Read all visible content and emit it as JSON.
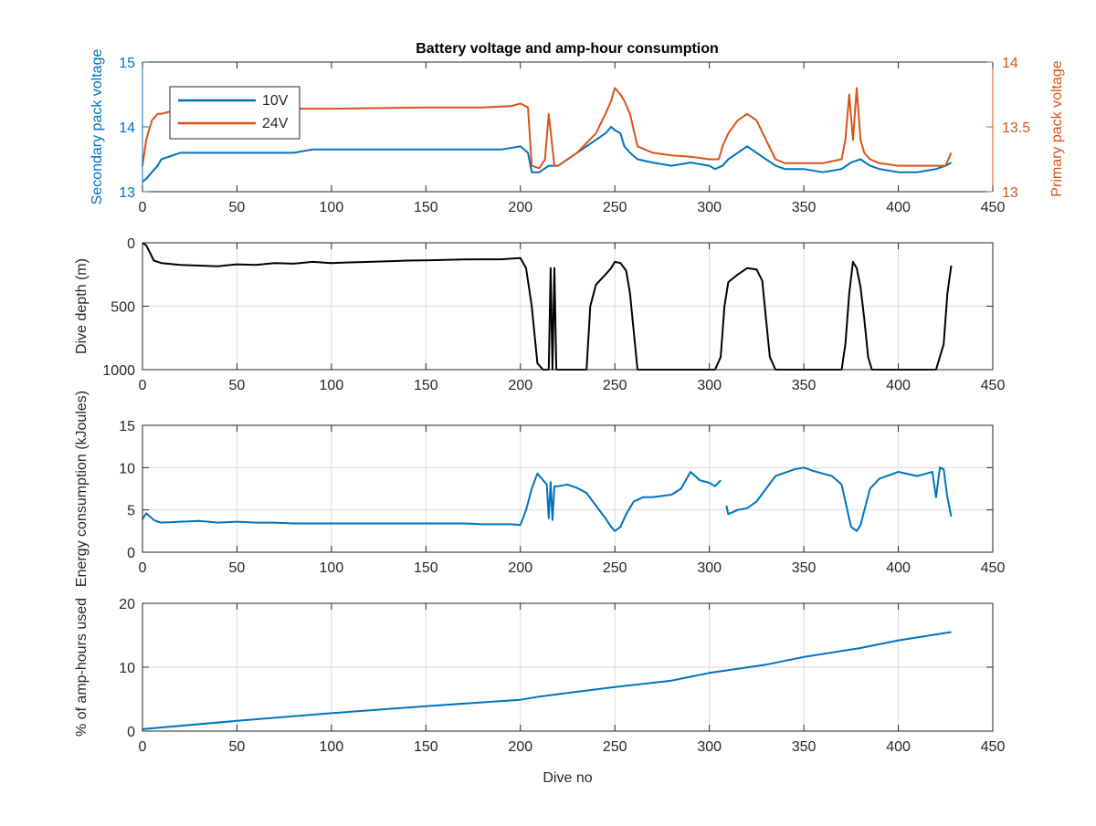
{
  "chart_data": [
    {
      "type": "line",
      "title": "Battery voltage and amp-hour consumption",
      "ylabel": "Secondary pack voltage",
      "ylabel_right": "Primary pack voltage",
      "xlim": [
        0,
        450
      ],
      "ylim": [
        13,
        15
      ],
      "ylim_right": [
        13,
        14
      ],
      "xticks": [
        0,
        50,
        100,
        150,
        200,
        250,
        300,
        350,
        400,
        450
      ],
      "yticks": [
        13,
        14,
        15
      ],
      "yticks_right": [
        13,
        13.5,
        14
      ],
      "grid": false,
      "legend": "top-left",
      "series": [
        {
          "name": "10V",
          "axis": "left",
          "color": "#0072BD",
          "x": [
            0,
            2,
            5,
            8,
            10,
            20,
            30,
            40,
            50,
            60,
            70,
            80,
            90,
            100,
            110,
            120,
            130,
            140,
            150,
            160,
            170,
            180,
            190,
            200,
            204,
            206,
            210,
            215,
            220,
            225,
            230,
            235,
            240,
            245,
            248,
            250,
            253,
            255,
            258,
            262,
            270,
            280,
            290,
            300,
            303,
            307,
            310,
            315,
            320,
            325,
            330,
            335,
            340,
            350,
            360,
            370,
            375,
            380,
            385,
            390,
            400,
            410,
            420,
            425,
            428
          ],
          "y": [
            13.15,
            13.2,
            13.3,
            13.4,
            13.5,
            13.6,
            13.6,
            13.6,
            13.6,
            13.6,
            13.6,
            13.6,
            13.65,
            13.65,
            13.65,
            13.65,
            13.65,
            13.65,
            13.65,
            13.65,
            13.65,
            13.65,
            13.65,
            13.7,
            13.6,
            13.3,
            13.3,
            13.4,
            13.4,
            13.5,
            13.6,
            13.7,
            13.8,
            13.9,
            14.0,
            13.95,
            13.9,
            13.7,
            13.6,
            13.5,
            13.45,
            13.4,
            13.45,
            13.4,
            13.35,
            13.4,
            13.5,
            13.6,
            13.7,
            13.6,
            13.5,
            13.4,
            13.35,
            13.35,
            13.3,
            13.35,
            13.45,
            13.5,
            13.4,
            13.35,
            13.3,
            13.3,
            13.35,
            13.4,
            13.45
          ]
        },
        {
          "name": "24V",
          "axis": "right",
          "color": "#D95319",
          "x": [
            0,
            2,
            5,
            8,
            10,
            15,
            20,
            50,
            80,
            100,
            150,
            180,
            195,
            200,
            204,
            206,
            210,
            213,
            215,
            218,
            220,
            230,
            240,
            245,
            248,
            250,
            253,
            255,
            258,
            262,
            270,
            280,
            290,
            300,
            305,
            307,
            310,
            315,
            320,
            325,
            330,
            335,
            340,
            350,
            360,
            370,
            372,
            374,
            376,
            378,
            380,
            382,
            385,
            390,
            400,
            410,
            420,
            425,
            428
          ],
          "y": [
            13.2,
            13.4,
            13.55,
            13.6,
            13.6,
            13.62,
            13.63,
            13.63,
            13.64,
            13.64,
            13.65,
            13.65,
            13.66,
            13.68,
            13.65,
            13.2,
            13.18,
            13.25,
            13.6,
            13.2,
            13.2,
            13.3,
            13.45,
            13.6,
            13.7,
            13.8,
            13.75,
            13.7,
            13.6,
            13.35,
            13.3,
            13.28,
            13.27,
            13.25,
            13.25,
            13.35,
            13.45,
            13.55,
            13.6,
            13.55,
            13.4,
            13.25,
            13.22,
            13.22,
            13.22,
            13.25,
            13.4,
            13.75,
            13.4,
            13.8,
            13.4,
            13.3,
            13.25,
            13.22,
            13.2,
            13.2,
            13.2,
            13.2,
            13.3
          ]
        }
      ]
    },
    {
      "type": "line",
      "ylabel": "Dive depth (m)",
      "xlim": [
        0,
        450
      ],
      "ylim": [
        0,
        1000
      ],
      "y_reversed": true,
      "xticks": [
        0,
        50,
        100,
        150,
        200,
        250,
        300,
        350,
        400,
        450
      ],
      "yticks": [
        0,
        500,
        1000
      ],
      "grid": true,
      "series": [
        {
          "color": "#000000",
          "x": [
            0,
            2,
            4,
            6,
            10,
            20,
            30,
            40,
            50,
            60,
            70,
            80,
            90,
            100,
            110,
            120,
            130,
            140,
            150,
            160,
            170,
            180,
            190,
            195,
            200,
            203,
            206,
            209,
            212,
            215,
            216,
            217,
            218,
            219,
            220,
            235,
            237,
            240,
            245,
            248,
            250,
            253,
            256,
            258,
            260,
            262,
            270,
            280,
            290,
            300,
            303,
            306,
            308,
            310,
            315,
            320,
            325,
            328,
            330,
            332,
            335,
            340,
            350,
            360,
            370,
            372,
            374,
            376,
            378,
            380,
            382,
            384,
            386,
            390,
            400,
            410,
            420,
            424,
            426,
            428
          ],
          "y": [
            0,
            20,
            80,
            140,
            160,
            175,
            180,
            185,
            170,
            175,
            160,
            165,
            150,
            160,
            155,
            150,
            145,
            140,
            138,
            135,
            132,
            130,
            130,
            125,
            120,
            200,
            500,
            950,
            1000,
            1000,
            200,
            1000,
            200,
            1000,
            1000,
            1000,
            500,
            330,
            250,
            200,
            150,
            160,
            220,
            400,
            700,
            1000,
            1000,
            1000,
            1000,
            1000,
            1000,
            900,
            500,
            310,
            250,
            200,
            210,
            300,
            600,
            900,
            1000,
            1000,
            1000,
            1000,
            1000,
            800,
            400,
            150,
            200,
            350,
            600,
            900,
            1000,
            1000,
            1000,
            1000,
            1000,
            800,
            400,
            180
          ]
        }
      ]
    },
    {
      "type": "line",
      "ylabel": "Energy consumption (kJoules)",
      "xlim": [
        0,
        450
      ],
      "ylim": [
        0,
        15
      ],
      "xticks": [
        0,
        50,
        100,
        150,
        200,
        250,
        300,
        350,
        400,
        450
      ],
      "yticks": [
        0,
        5,
        10,
        15
      ],
      "grid": true,
      "series": [
        {
          "color": "#0072BD",
          "x": [
            0,
            2,
            4,
            6,
            8,
            10,
            20,
            30,
            40,
            50,
            60,
            70,
            80,
            90,
            100,
            110,
            120,
            130,
            140,
            150,
            160,
            170,
            180,
            190,
            195,
            200,
            203,
            206,
            209,
            212,
            214,
            215,
            216,
            217,
            218,
            220,
            225,
            230,
            235,
            240,
            245,
            248,
            250,
            253,
            256,
            260,
            265,
            270,
            280,
            285,
            290,
            295,
            300,
            303,
            306,
            null,
            309,
            310,
            315,
            320,
            325,
            330,
            335,
            340,
            345,
            350,
            355,
            360,
            365,
            370,
            373,
            375,
            378,
            380,
            385,
            390,
            400,
            410,
            415,
            418,
            420,
            422,
            424,
            426,
            428
          ],
          "y": [
            3.9,
            4.6,
            4.2,
            3.8,
            3.6,
            3.5,
            3.6,
            3.7,
            3.5,
            3.6,
            3.5,
            3.5,
            3.4,
            3.4,
            3.4,
            3.4,
            3.4,
            3.4,
            3.4,
            3.4,
            3.4,
            3.4,
            3.3,
            3.3,
            3.3,
            3.2,
            5.0,
            7.5,
            9.3,
            8.5,
            8.0,
            4.0,
            8.3,
            3.8,
            7.8,
            7.8,
            8.0,
            7.6,
            7.0,
            5.5,
            4.0,
            3.0,
            2.5,
            3.0,
            4.5,
            6.0,
            6.5,
            6.5,
            6.8,
            7.5,
            9.5,
            8.5,
            8.2,
            7.8,
            8.5,
            null,
            5.5,
            4.5,
            5.0,
            5.2,
            6.0,
            7.5,
            9.0,
            9.4,
            9.8,
            10.0,
            9.6,
            9.3,
            9.0,
            8.0,
            5.0,
            3.0,
            2.5,
            3.2,
            7.5,
            8.7,
            9.5,
            9.0,
            9.3,
            9.5,
            6.5,
            10.0,
            9.8,
            6.5,
            4.2
          ]
        }
      ]
    },
    {
      "type": "line",
      "ylabel": "% of amp-hours used",
      "xlabel": "Dive no",
      "xlim": [
        0,
        450
      ],
      "ylim": [
        0,
        20
      ],
      "xticks": [
        0,
        50,
        100,
        150,
        200,
        250,
        300,
        350,
        400,
        450
      ],
      "yticks": [
        0,
        10,
        20
      ],
      "grid": true,
      "series": [
        {
          "color": "#0072BD",
          "x": [
            0,
            50,
            100,
            150,
            200,
            210,
            250,
            280,
            300,
            330,
            350,
            380,
            400,
            428
          ],
          "y": [
            0.3,
            1.6,
            2.8,
            3.9,
            4.9,
            5.4,
            6.9,
            7.9,
            9.1,
            10.4,
            11.6,
            13.0,
            14.2,
            15.5
          ]
        }
      ]
    }
  ]
}
